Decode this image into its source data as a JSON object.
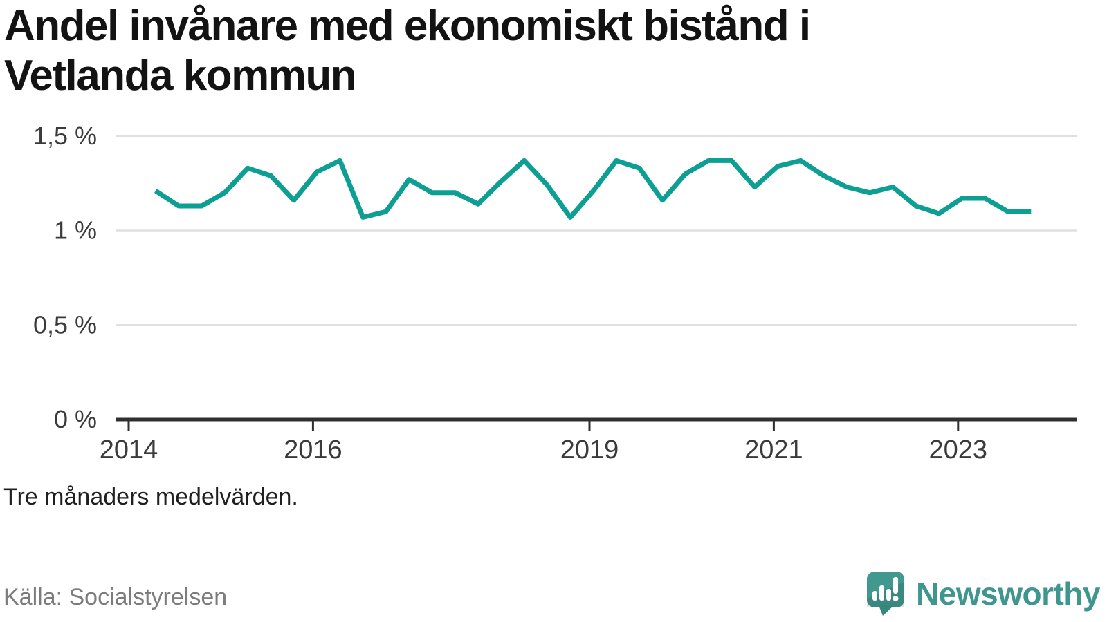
{
  "title": {
    "text": "Andel invånare med ekonomiskt bistånd i Vetlanda kommun",
    "line1": "Andel invånare med ekonomiskt bistånd i",
    "line2": "Vetlanda kommun"
  },
  "note": "Tre månaders medelvärden.",
  "source": "Källa: Socialstyrelsen",
  "brand": {
    "name": "Newsworthy",
    "logo_icon": "speech-bubble-bar-chart-exclamation"
  },
  "colors": {
    "line": "#0d9e94",
    "grid": "#e0e0e0",
    "axis": "#2f2f2f",
    "tick_text": "#3a3a3a",
    "title_text": "#131313",
    "note_text": "#1f1f1f",
    "source_text": "#7c7c7c",
    "brand_teal": "#3e968e",
    "brand_teal_dark": "#35867d"
  },
  "chart_data": {
    "type": "line",
    "title": "Andel invånare med ekonomiskt bistånd i Vetlanda kommun",
    "xlabel": "",
    "ylabel": "%",
    "unit": "%",
    "ylim": [
      0,
      1.5
    ],
    "grid": true,
    "legend": false,
    "y_ticks": [
      {
        "value": 0,
        "label": "0 %"
      },
      {
        "value": 0.5,
        "label": "0,5 %"
      },
      {
        "value": 1,
        "label": "1 %"
      },
      {
        "value": 1.5,
        "label": "1,5 %"
      }
    ],
    "x_ticks": [
      {
        "value": 2014,
        "label": "2014"
      },
      {
        "value": 2016,
        "label": "2016"
      },
      {
        "value": 2019,
        "label": "2019"
      },
      {
        "value": 2021,
        "label": "2021"
      },
      {
        "value": 2023,
        "label": "2023"
      }
    ],
    "periods": [
      "2014-04",
      "2014-07",
      "2014-10",
      "2015-01",
      "2015-04",
      "2015-07",
      "2015-10",
      "2016-01",
      "2016-04",
      "2016-07",
      "2016-10",
      "2017-01",
      "2017-04",
      "2017-07",
      "2017-10",
      "2018-01",
      "2018-04",
      "2018-07",
      "2018-10",
      "2019-01",
      "2019-04",
      "2019-07",
      "2019-10",
      "2020-01",
      "2020-04",
      "2020-07",
      "2020-10",
      "2021-01",
      "2021-04",
      "2021-07",
      "2021-10",
      "2022-01",
      "2022-04",
      "2022-07",
      "2022-10",
      "2023-01",
      "2023-04",
      "2023-07",
      "2023-10"
    ],
    "values": [
      1.21,
      1.13,
      1.13,
      1.2,
      1.33,
      1.29,
      1.16,
      1.31,
      1.37,
      1.07,
      1.1,
      1.27,
      1.2,
      1.2,
      1.14,
      1.26,
      1.37,
      1.24,
      1.07,
      1.21,
      1.37,
      1.33,
      1.16,
      1.3,
      1.37,
      1.37,
      1.23,
      1.34,
      1.37,
      1.29,
      1.23,
      1.2,
      1.23,
      1.13,
      1.09,
      1.17,
      1.17,
      1.1,
      1.1
    ]
  }
}
